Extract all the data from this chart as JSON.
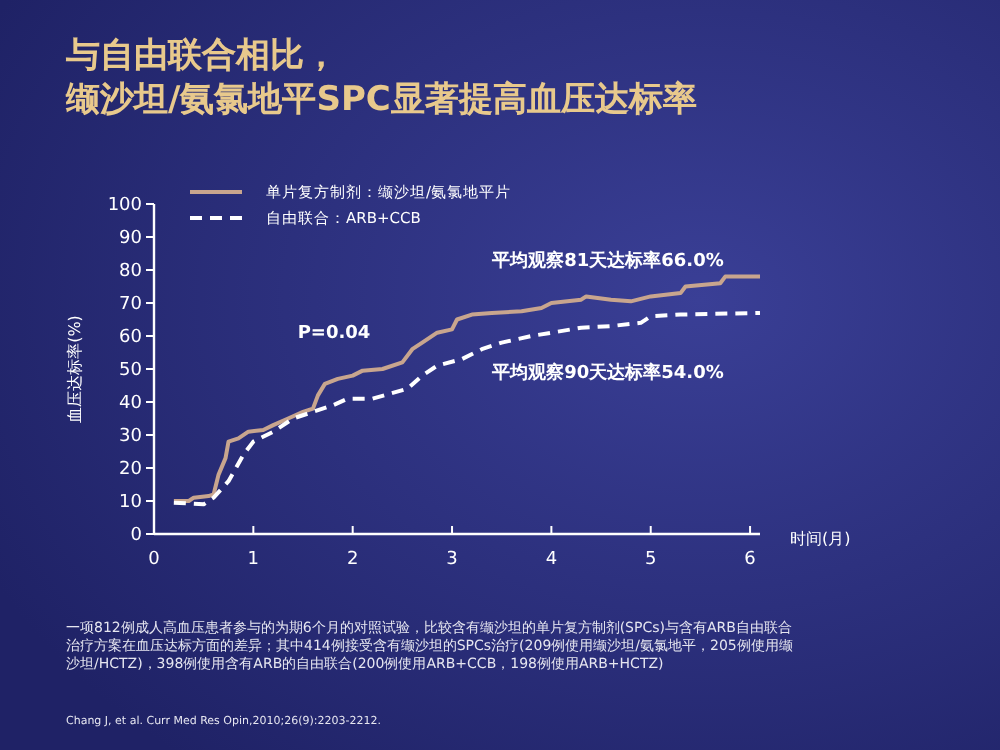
{
  "chart_data": {
    "type": "line",
    "title": "与自由联合相比，",
    "subtitle": "缬沙坦/氨氯地平SPC显著提高血压达标率",
    "xlabel": "时间(月)",
    "ylabel": "血压达标率(%)",
    "xlim": [
      0,
      6.1
    ],
    "xticks": [
      0,
      1,
      2,
      3,
      4,
      5,
      6
    ],
    "ylim": [
      0,
      100
    ],
    "yticks": [
      0,
      10,
      20,
      30,
      40,
      50,
      60,
      70,
      80,
      90,
      100
    ],
    "grid": false,
    "legend": "top left",
    "marker": "none",
    "series": [
      {
        "name": "单片复方制剂：缬沙坦/氨氯地平片",
        "color": "#c8a58e",
        "line_style": "solid",
        "x": [
          0.2,
          0.35,
          0.4,
          0.55,
          0.6,
          0.65,
          0.72,
          0.75,
          0.85,
          0.95,
          1.1,
          1.2,
          1.35,
          1.5,
          1.6,
          1.65,
          1.72,
          1.85,
          2.0,
          2.1,
          2.3,
          2.5,
          2.6,
          2.7,
          2.85,
          3.0,
          3.05,
          3.2,
          3.4,
          3.7,
          3.9,
          4.0,
          4.3,
          4.35,
          4.6,
          4.8,
          5.0,
          5.3,
          5.35,
          5.7,
          5.75,
          6.1
        ],
        "values": [
          10,
          10,
          11,
          11.5,
          12,
          18,
          23,
          28,
          29,
          31,
          31.5,
          33,
          35,
          37,
          38,
          42,
          45.5,
          47,
          48,
          49.5,
          50,
          52,
          56,
          58,
          61,
          62,
          65,
          66.5,
          67,
          67.5,
          68.5,
          70,
          71,
          72,
          71,
          70.5,
          72,
          73,
          75,
          76,
          78,
          78
        ]
      },
      {
        "name": "自由联合：ARB+CCB",
        "color": "#ffffff",
        "line_style": "dashed",
        "x": [
          0.2,
          0.5,
          0.6,
          0.75,
          0.9,
          1.0,
          1.2,
          1.4,
          1.6,
          1.8,
          1.95,
          2.2,
          2.55,
          2.7,
          2.85,
          3.1,
          3.3,
          3.5,
          3.8,
          4.0,
          4.3,
          4.6,
          4.9,
          5.0,
          5.3,
          6.1
        ],
        "values": [
          9.5,
          9,
          11,
          16,
          24,
          28,
          31,
          35,
          37,
          39,
          41,
          41,
          44,
          48,
          51,
          53,
          56,
          58,
          60,
          61,
          62.5,
          63,
          64,
          66,
          66.5,
          67
        ]
      }
    ],
    "annotations": [
      "P=0.04",
      "平均观察81天达标率66.0%",
      "平均观察90天达标率54.0%",
      "一项812例成人高血压患者参与的为期6个月的对照试验，比较含有缬沙坦的单片复方制剂(SPCs)与含有ARB自由联合治疗方案在血压达标方面的差异；其中414例接受含有缬沙坦的SPCs治疗(209例使用缬沙坦/氨氯地平，205例使用缬沙坦/HCTZ)，398例使用含有ARB的自由联合(200例使用ARB+CCB，198例使用ARB+HCTZ)",
      "Chang J, et al. Curr Med Res Opin,2010;26(9):2203-2212."
    ]
  }
}
